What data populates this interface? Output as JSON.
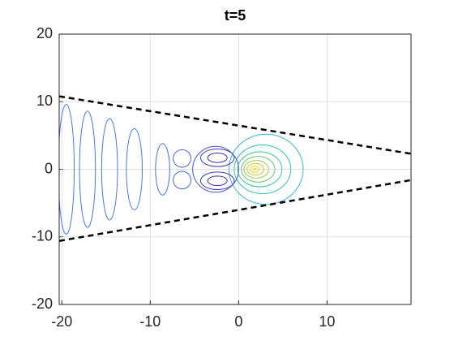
{
  "chart_data": {
    "type": "contour",
    "title": "t=5",
    "xlim": [
      -20.3,
      19.5
    ],
    "ylim": [
      -20,
      20
    ],
    "xticks": [
      -20,
      -10,
      0,
      10
    ],
    "yticks": [
      -20,
      -10,
      0,
      10,
      20
    ],
    "grid": true,
    "contours": [
      {
        "x": 3.1,
        "y": 0,
        "rx": 4.2,
        "ry": 5.2,
        "color": "#35b8d4"
      },
      {
        "x": 2.7,
        "y": 0,
        "rx": 3.2,
        "ry": 3.6,
        "color": "#2fbfb6"
      },
      {
        "x": 2.4,
        "y": 0,
        "rx": 2.5,
        "ry": 2.6,
        "color": "#3fc49a"
      },
      {
        "x": 2.2,
        "y": 0,
        "rx": 1.9,
        "ry": 1.9,
        "color": "#69c86f"
      },
      {
        "x": 2.0,
        "y": 0,
        "rx": 1.4,
        "ry": 1.3,
        "color": "#9bc94b"
      },
      {
        "x": 1.9,
        "y": 0,
        "rx": 0.95,
        "ry": 0.85,
        "color": "#c8c431"
      },
      {
        "x": 1.8,
        "y": 0,
        "rx": 0.5,
        "ry": 0.45,
        "color": "#f0cc2e"
      },
      {
        "x": 1.8,
        "y": 0,
        "rx": 0.2,
        "ry": 0.15,
        "color": "#f9e520"
      },
      {
        "x": -2.4,
        "y": 1.7,
        "rx": 1.9,
        "ry": 1.3,
        "color": "#3a3bb5"
      },
      {
        "x": -2.4,
        "y": 1.7,
        "rx": 1.1,
        "ry": 0.7,
        "color": "#3e26a8"
      },
      {
        "x": -2.4,
        "y": -1.7,
        "rx": 1.9,
        "ry": 1.3,
        "color": "#3a3bb5"
      },
      {
        "x": -2.4,
        "y": -1.7,
        "rx": 1.1,
        "ry": 0.7,
        "color": "#3e26a8"
      },
      {
        "x": -2.6,
        "y": 0,
        "rx": 2.6,
        "ry": 3.4,
        "color": "#4358d8"
      },
      {
        "x": -6.4,
        "y": 1.6,
        "rx": 1.0,
        "ry": 1.3,
        "color": "#4169e6"
      },
      {
        "x": -6.4,
        "y": -1.6,
        "rx": 1.0,
        "ry": 1.3,
        "color": "#4169e6"
      },
      {
        "x": -8.6,
        "y": 0,
        "rx": 0.8,
        "ry": 3.8,
        "color": "#4170ea"
      },
      {
        "x": -11.8,
        "y": 0,
        "rx": 0.9,
        "ry": 6.0,
        "color": "#4478ee"
      },
      {
        "x": -14.6,
        "y": 0,
        "rx": 0.9,
        "ry": 7.5,
        "color": "#4478ee"
      },
      {
        "x": -17.1,
        "y": 0,
        "rx": 0.9,
        "ry": 8.6,
        "color": "#4478ee"
      },
      {
        "x": -19.5,
        "y": 0,
        "rx": 0.9,
        "ry": 9.6,
        "color": "#4478ee"
      }
    ],
    "series": [
      {
        "color": "#000000",
        "x": [
          -20.3,
          19.5
        ],
        "values": [
          10.8,
          2.3
        ]
      },
      {
        "color": "#000000",
        "x": [
          -20.3,
          19.5
        ],
        "values": [
          -10.6,
          -1.6
        ]
      }
    ]
  }
}
